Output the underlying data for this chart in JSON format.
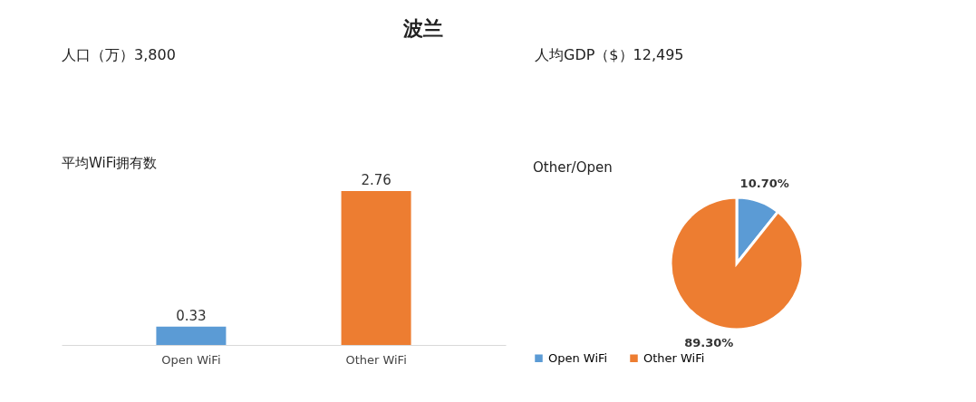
{
  "chart_data": [
    {
      "type": "other",
      "title": "波兰",
      "annotations": [
        "人口（万）3,800",
        "人均GDP（$）12,495"
      ]
    },
    {
      "type": "bar",
      "title": "平均WiFi拥有数",
      "categories": [
        "Open WiFi",
        "Other WiFi"
      ],
      "values": [
        0.33,
        2.76
      ],
      "colors": [
        "#5b9bd5",
        "#ed7d31"
      ],
      "data_labels": true
    },
    {
      "type": "pie",
      "title": "Other/Open",
      "categories": [
        "Open WiFi",
        "Other WiFi"
      ],
      "values": [
        10.7,
        89.3
      ],
      "colors": [
        "#5b9bd5",
        "#ed7d31"
      ],
      "value_labels": [
        "10.70%",
        "89.30%"
      ],
      "legend": "bottom"
    }
  ]
}
